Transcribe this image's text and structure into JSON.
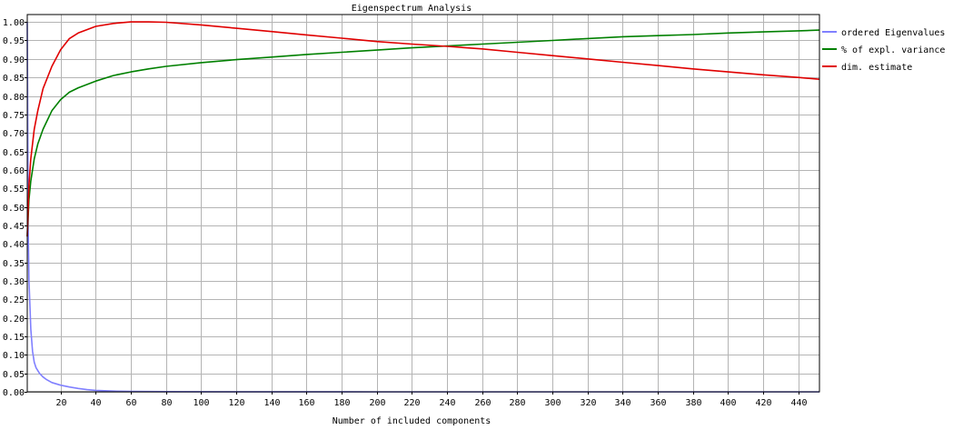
{
  "chart_data": {
    "type": "line",
    "title": "Eigenspectrum Analysis",
    "xlabel": "Number of included components",
    "ylabel": "",
    "xlim": [
      1,
      452
    ],
    "ylim": [
      0,
      1.02
    ],
    "grid": true,
    "legend_position": "right",
    "x_ticks": [
      20,
      40,
      60,
      80,
      100,
      120,
      140,
      160,
      180,
      200,
      220,
      240,
      260,
      280,
      300,
      320,
      340,
      360,
      380,
      400,
      420,
      440
    ],
    "x_tick_labels": [
      "20",
      "40",
      "60",
      "80",
      "100",
      "120",
      "140",
      "160",
      "180",
      "200",
      "220",
      "240",
      "260",
      "280",
      "300",
      "320",
      "340",
      "360",
      "380",
      "400",
      "420",
      "440"
    ],
    "y_ticks": [
      0.0,
      0.05,
      0.1,
      0.15,
      0.2,
      0.25,
      0.3,
      0.35,
      0.4,
      0.45,
      0.5,
      0.55,
      0.6,
      0.65,
      0.7,
      0.75,
      0.8,
      0.85,
      0.9,
      0.95,
      1.0
    ],
    "y_tick_labels": [
      "0.00",
      "0.05",
      "0.10",
      "0.15",
      "0.20",
      "0.25",
      "0.30",
      "0.35",
      "0.40",
      "0.45",
      "0.50",
      "0.55",
      "0.60",
      "0.65",
      "0.70",
      "0.75",
      "0.80",
      "0.85",
      "0.90",
      "0.95",
      "1.00"
    ],
    "series": [
      {
        "name": "ordered Eigenvalues",
        "color": "#8080ff",
        "x": [
          1,
          1.5,
          2,
          3,
          4,
          5,
          6,
          8,
          10,
          12,
          15,
          20,
          25,
          30,
          35,
          40,
          50,
          60,
          80,
          120,
          200,
          300,
          452
        ],
        "y": [
          1.0,
          0.45,
          0.3,
          0.17,
          0.11,
          0.08,
          0.065,
          0.05,
          0.04,
          0.033,
          0.025,
          0.018,
          0.013,
          0.009,
          0.006,
          0.004,
          0.002,
          0.001,
          0.0005,
          0.0002,
          0.0001,
          0.0,
          0.0
        ]
      },
      {
        "name": "% of expl. variance",
        "color": "#008000",
        "x": [
          1,
          2,
          3,
          5,
          7,
          10,
          15,
          20,
          25,
          30,
          40,
          50,
          60,
          70,
          80,
          100,
          120,
          140,
          160,
          180,
          200,
          220,
          240,
          260,
          280,
          300,
          320,
          340,
          360,
          380,
          400,
          420,
          440,
          452
        ],
        "y": [
          0.42,
          0.52,
          0.57,
          0.63,
          0.67,
          0.71,
          0.76,
          0.79,
          0.81,
          0.822,
          0.84,
          0.855,
          0.865,
          0.873,
          0.88,
          0.89,
          0.898,
          0.905,
          0.912,
          0.918,
          0.924,
          0.93,
          0.935,
          0.94,
          0.945,
          0.95,
          0.955,
          0.96,
          0.963,
          0.966,
          0.97,
          0.973,
          0.976,
          0.978
        ]
      },
      {
        "name": "dim. estimate",
        "color": "#e00000",
        "x": [
          1,
          2,
          3,
          5,
          7,
          10,
          15,
          20,
          25,
          30,
          40,
          50,
          60,
          70,
          80,
          100,
          120,
          140,
          160,
          180,
          200,
          220,
          240,
          260,
          280,
          300,
          320,
          340,
          360,
          380,
          400,
          420,
          440,
          452
        ],
        "y": [
          0.42,
          0.56,
          0.63,
          0.71,
          0.76,
          0.82,
          0.88,
          0.925,
          0.955,
          0.97,
          0.988,
          0.996,
          1.0,
          1.0,
          0.999,
          0.992,
          0.983,
          0.974,
          0.965,
          0.956,
          0.947,
          0.94,
          0.934,
          0.927,
          0.918,
          0.909,
          0.9,
          0.891,
          0.882,
          0.873,
          0.865,
          0.857,
          0.85,
          0.845
        ]
      }
    ]
  }
}
